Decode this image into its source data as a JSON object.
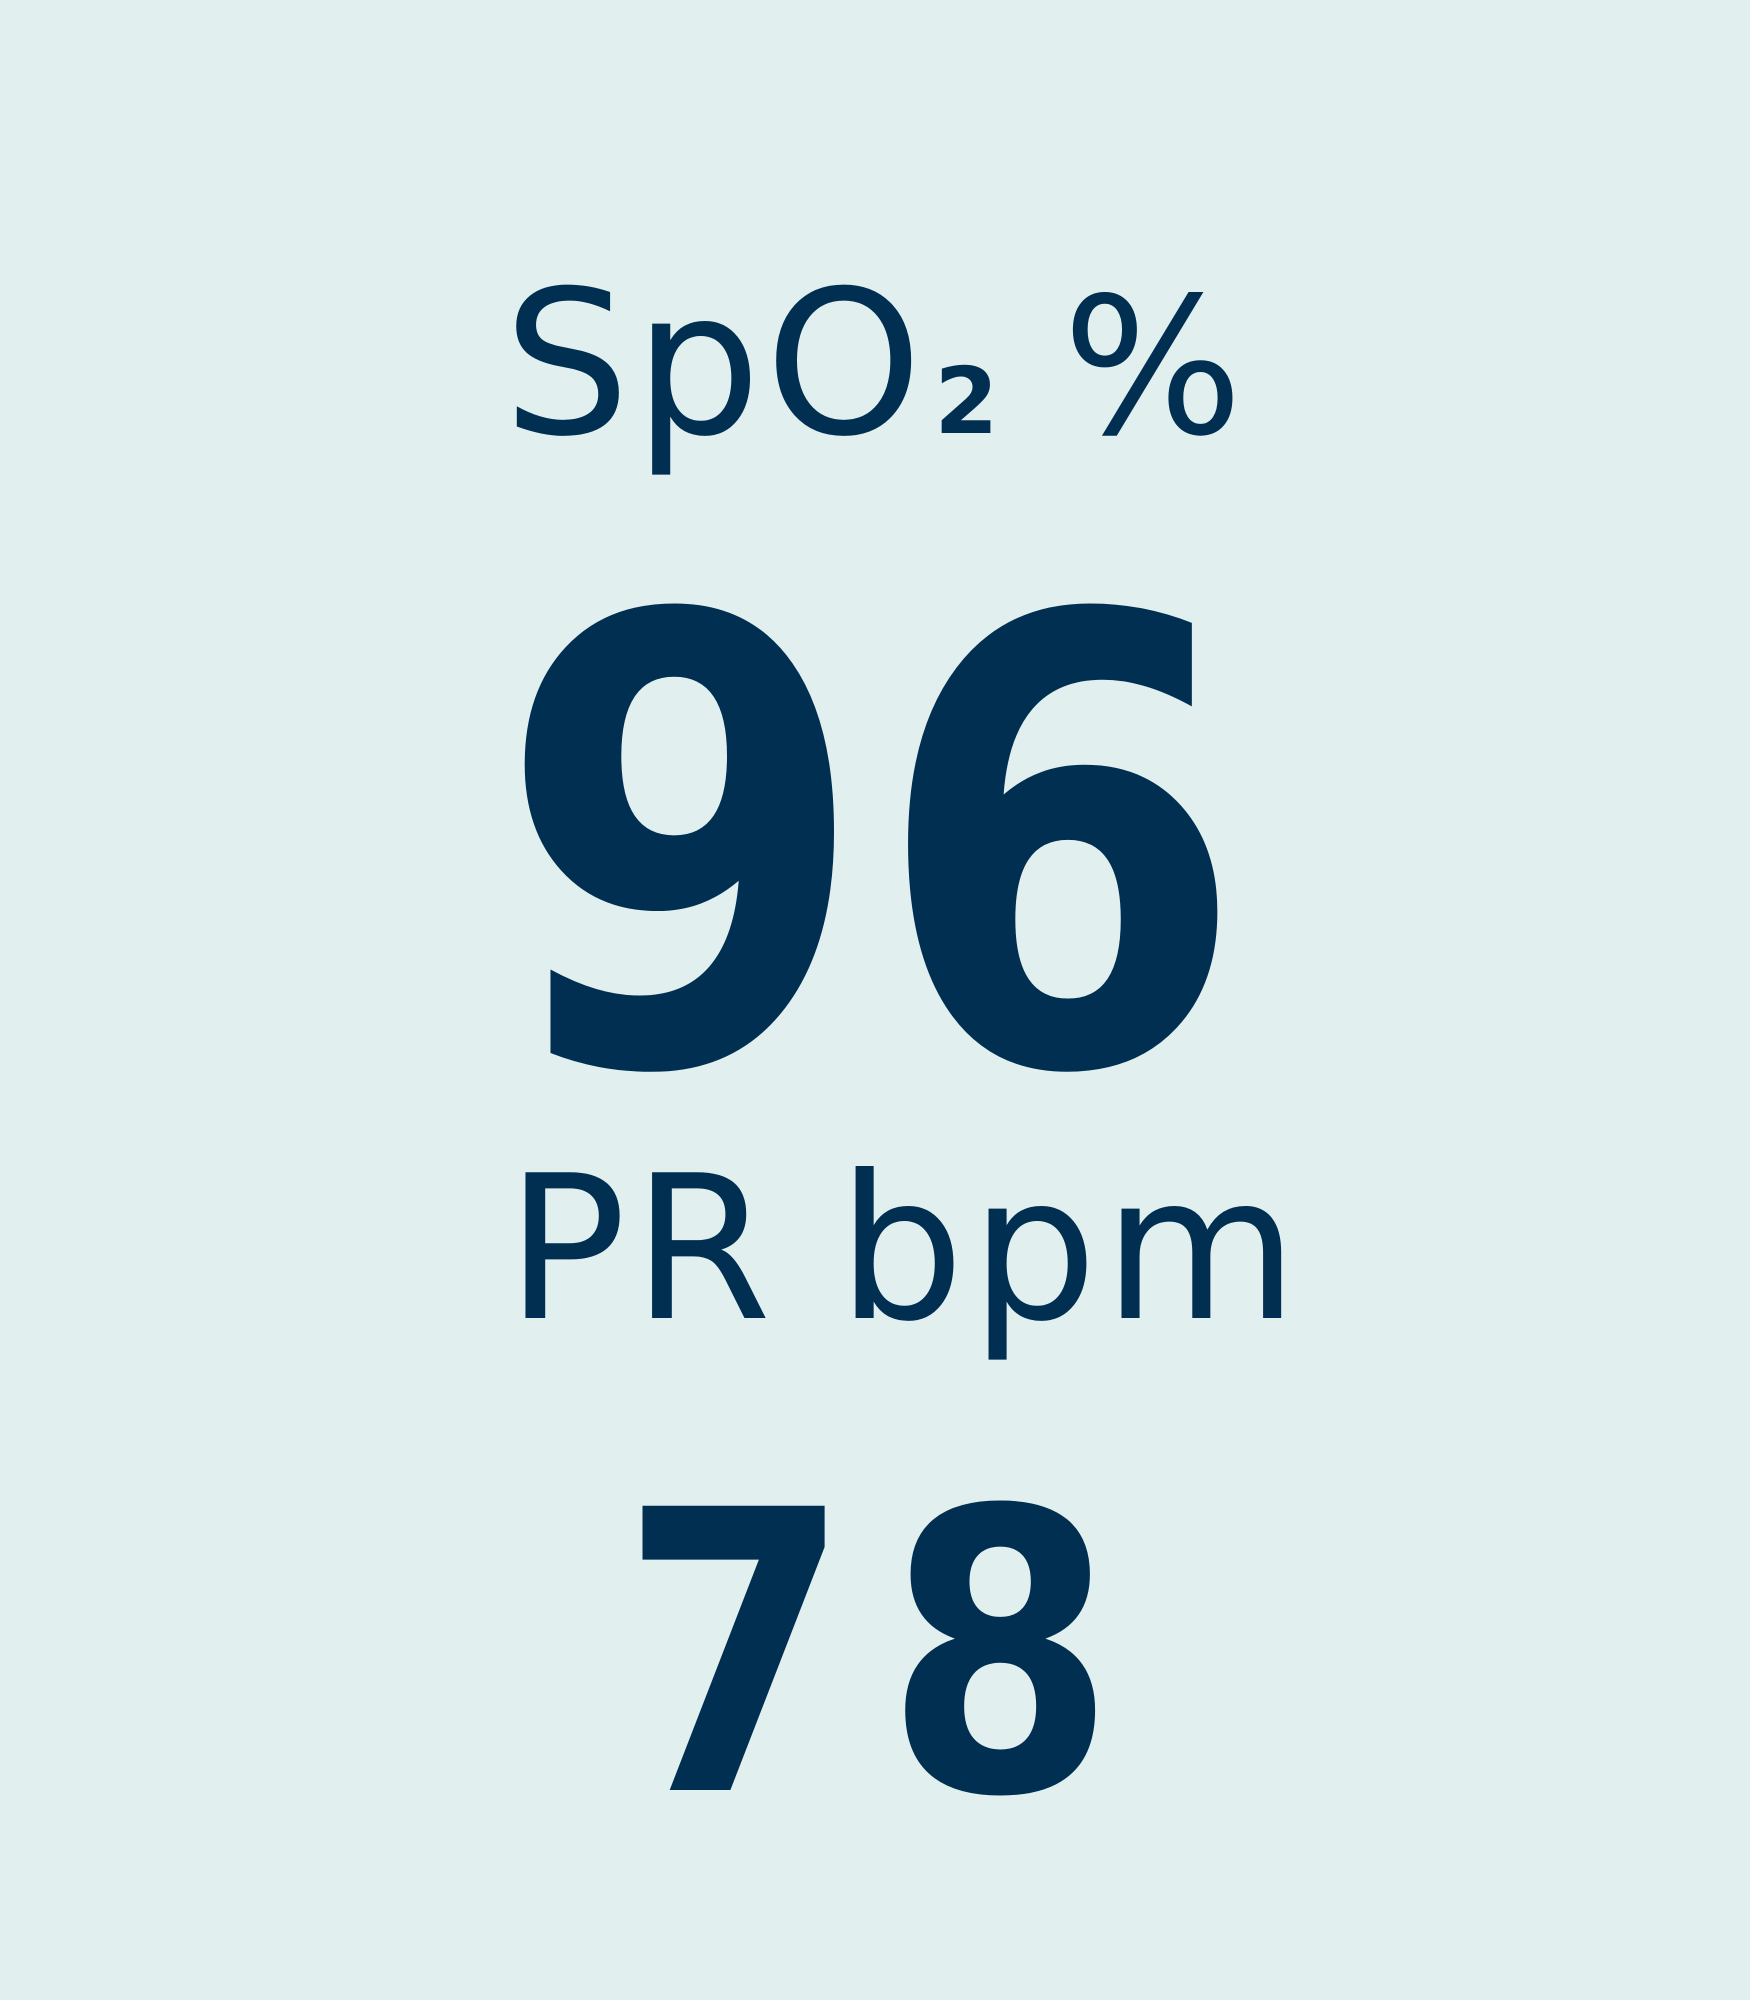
{
  "spo2": {
    "label": "SpO",
    "subscript": "2",
    "unit": "%",
    "value": "96"
  },
  "pr": {
    "label": "PR",
    "unit": "bpm",
    "value": "78"
  },
  "colors": {
    "background": "#e1efef",
    "text": "#012f52"
  }
}
